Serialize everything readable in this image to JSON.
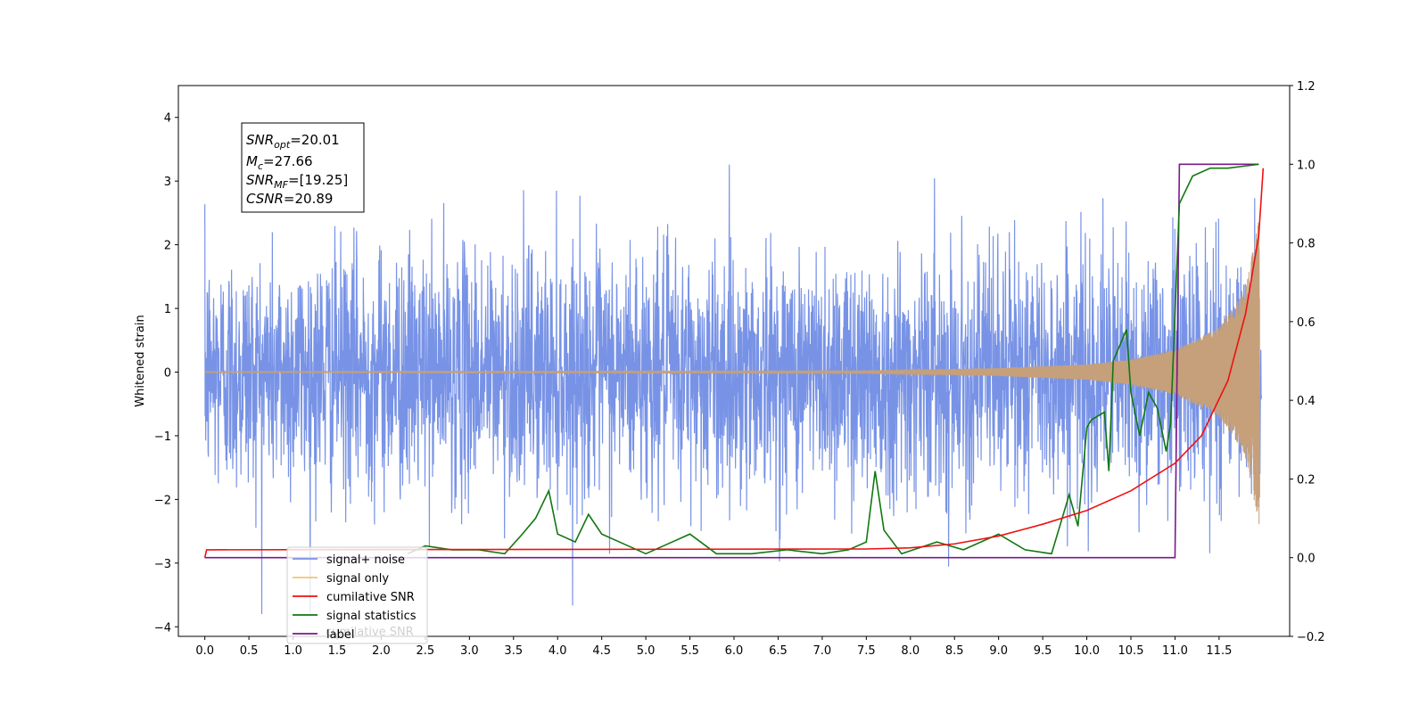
{
  "chart_data": {
    "type": "line",
    "ylabel": "Whitened strain",
    "x_ticks": [
      "0.0",
      "0.5",
      "1.0",
      "1.5",
      "2.0",
      "2.5",
      "3.0",
      "3.5",
      "4.0",
      "4.5",
      "5.0",
      "5.5",
      "6.0",
      "6.5",
      "7.0",
      "7.5",
      "8.0",
      "8.5",
      "9.0",
      "9.5",
      "10.0",
      "10.5",
      "11.0",
      "11.5"
    ],
    "xlim": [
      -0.3,
      12.3
    ],
    "y_left_ticks": [
      "4",
      "3",
      "2",
      "1",
      "0",
      "−1",
      "−2",
      "−3",
      "−4"
    ],
    "ylim_left": [
      -4.15,
      4.5
    ],
    "y_right_ticks": [
      "1.2",
      "1.0",
      "0.8",
      "0.6",
      "0.4",
      "0.2",
      "0.0",
      "−0.2"
    ],
    "ylim_right": [
      -0.2,
      1.2
    ],
    "annotation": {
      "snr_opt_main": "SNR",
      "snr_opt_sub": "opt",
      "snr_opt_val": "=20.01",
      "mc_main": "M",
      "mc_sub": "c",
      "mc_val": "=27.66",
      "snr_mf_main": "SNR",
      "snr_mf_sub": "MF",
      "snr_mf_val": "=[19.25]",
      "csnr_main": "CSNR",
      "csnr_val": "=20.89"
    },
    "legend": {
      "placement": "lower-left",
      "entries": [
        "signal+ noise",
        "signal only",
        "cumilative SNR",
        "signal statistics",
        "label"
      ],
      "ghost_text": "cumilative SNR"
    },
    "colors": {
      "noise": "#7893e6",
      "signal": "#f5c46e",
      "signal_dense": "#c5a07a",
      "cumulative_snr": "#ee1111",
      "signal_statistics": "#117711",
      "label": "#7a1a8a"
    },
    "series": [
      {
        "name": "signal+ noise",
        "axis": "left",
        "description_values": "noise-dominated whitened strain, approx. ±3.7 around 0"
      },
      {
        "name": "signal only",
        "axis": "left",
        "envelope": {
          "x": [
            0.0,
            7.5,
            9.0,
            10.0,
            10.5,
            11.0,
            11.5,
            11.8,
            11.95
          ],
          "amp": [
            0.01,
            0.02,
            0.06,
            0.12,
            0.2,
            0.35,
            0.7,
            1.3,
            2.4
          ]
        }
      },
      {
        "name": "cumilative SNR",
        "axis": "right",
        "x": [
          0.0,
          0.02,
          7.5,
          8.0,
          8.5,
          9.0,
          9.5,
          10.0,
          10.5,
          11.0,
          11.3,
          11.6,
          11.8,
          11.95,
          12.0
        ],
        "y": [
          0.0,
          0.02,
          0.022,
          0.025,
          0.035,
          0.055,
          0.085,
          0.12,
          0.17,
          0.24,
          0.31,
          0.45,
          0.62,
          0.82,
          0.99
        ]
      },
      {
        "name": "signal statistics",
        "axis": "right",
        "x": [
          2.3,
          2.5,
          2.8,
          3.1,
          3.4,
          3.6,
          3.75,
          3.9,
          4.0,
          4.2,
          4.35,
          4.5,
          4.7,
          5.0,
          5.3,
          5.5,
          5.8,
          6.2,
          6.6,
          7.0,
          7.3,
          7.5,
          7.6,
          7.7,
          7.9,
          8.3,
          8.6,
          9.0,
          9.3,
          9.6,
          9.8,
          9.9,
          10.0,
          10.05,
          10.2,
          10.25,
          10.3,
          10.45,
          10.5,
          10.6,
          10.7,
          10.8,
          10.9,
          10.95,
          11.05,
          11.2,
          11.4,
          11.6,
          11.95
        ],
        "y": [
          0.01,
          0.03,
          0.02,
          0.02,
          0.01,
          0.06,
          0.1,
          0.17,
          0.06,
          0.04,
          0.11,
          0.06,
          0.04,
          0.01,
          0.04,
          0.06,
          0.01,
          0.01,
          0.02,
          0.01,
          0.02,
          0.04,
          0.22,
          0.07,
          0.01,
          0.04,
          0.02,
          0.06,
          0.02,
          0.01,
          0.16,
          0.08,
          0.33,
          0.35,
          0.37,
          0.22,
          0.5,
          0.58,
          0.42,
          0.31,
          0.42,
          0.38,
          0.27,
          0.34,
          0.9,
          0.97,
          0.99,
          0.99,
          1.0
        ]
      },
      {
        "name": "label",
        "axis": "right",
        "x": [
          0.0,
          11.0,
          11.05,
          11.95
        ],
        "y": [
          0.0,
          0.0,
          1.0,
          1.0
        ]
      }
    ]
  }
}
